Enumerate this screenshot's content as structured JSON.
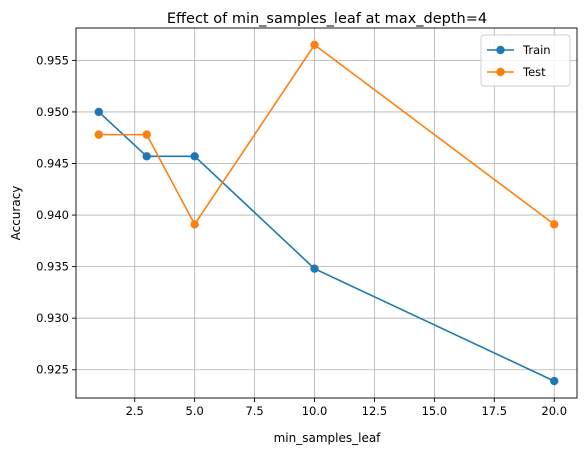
{
  "chart_data": {
    "type": "line",
    "title": "Effect of min_samples_leaf at max_depth=4",
    "xlabel": "min_samples_leaf",
    "ylabel": "Accuracy",
    "x": [
      1,
      3,
      5,
      10,
      20
    ],
    "series": [
      {
        "name": "Train",
        "color": "#1f77b4",
        "values": [
          0.95,
          0.9457,
          0.9457,
          0.9348,
          0.9239
        ]
      },
      {
        "name": "Test",
        "color": "#ff7f0e",
        "values": [
          0.9478,
          0.9478,
          0.9391,
          0.9565,
          0.9391
        ]
      }
    ],
    "xticks": [
      2.5,
      5.0,
      7.5,
      10.0,
      12.5,
      15.0,
      17.5,
      20.0
    ],
    "xtick_labels": [
      "2.5",
      "5.0",
      "7.5",
      "10.0",
      "12.5",
      "15.0",
      "17.5",
      "20.0"
    ],
    "yticks": [
      0.925,
      0.93,
      0.935,
      0.94,
      0.945,
      0.95,
      0.955
    ],
    "ytick_labels": [
      "0.925",
      "0.930",
      "0.935",
      "0.940",
      "0.945",
      "0.950",
      "0.955"
    ],
    "xlim": [
      0.05,
      20.95
    ],
    "ylim": [
      0.92226,
      0.95814
    ],
    "grid": true,
    "legend": "top-right"
  }
}
